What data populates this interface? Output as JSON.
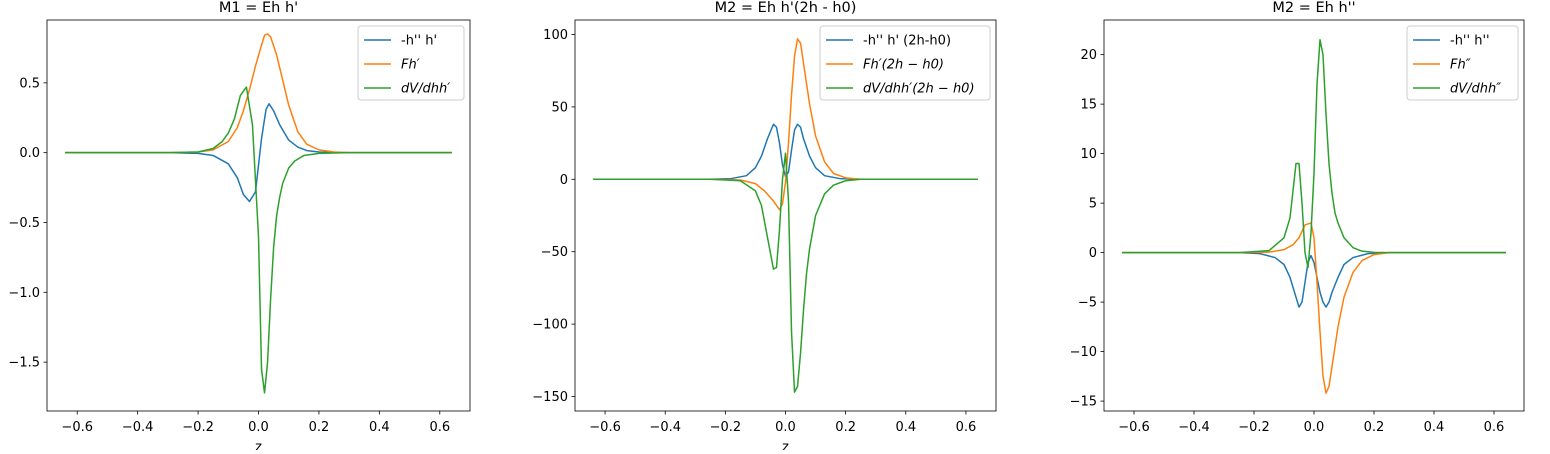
{
  "chart_data": [
    {
      "type": "line",
      "title": "M1 = Eh h'",
      "xlabel": "z",
      "ylabel": "",
      "xlim": [
        -0.7,
        0.7
      ],
      "ylim": [
        -1.85,
        0.95
      ],
      "xticks": [
        -0.6,
        -0.4,
        -0.2,
        0.0,
        0.2,
        0.4,
        0.6
      ],
      "xtick_labels": [
        "−0.6",
        "−0.4",
        "−0.2",
        "0.0",
        "0.2",
        "0.4",
        "0.6"
      ],
      "yticks": [
        -1.5,
        -1.0,
        -0.5,
        0.0,
        0.5
      ],
      "ytick_labels": [
        "−1.5",
        "−1.0",
        "−0.5",
        "0.0",
        "0.5"
      ],
      "legend_position": "top-right",
      "grid": false,
      "series": [
        {
          "name": "-h'' h'",
          "legend_style": "plain",
          "color": "#1f77b4",
          "x": [
            -0.64,
            -0.3,
            -0.2,
            -0.15,
            -0.1,
            -0.07,
            -0.05,
            -0.03,
            -0.01,
            0.01,
            0.025,
            0.035,
            0.05,
            0.07,
            0.1,
            0.13,
            0.16,
            0.2,
            0.3,
            0.64
          ],
          "y": [
            0,
            0,
            -0.005,
            -0.02,
            -0.08,
            -0.18,
            -0.3,
            -0.35,
            -0.28,
            0.1,
            0.31,
            0.35,
            0.3,
            0.2,
            0.09,
            0.04,
            0.015,
            0.005,
            0,
            0
          ]
        },
        {
          "name": "Fh′",
          "legend_style": "math",
          "color": "#ff7f0e",
          "x": [
            -0.64,
            -0.3,
            -0.2,
            -0.15,
            -0.1,
            -0.07,
            -0.05,
            -0.03,
            -0.01,
            0.01,
            0.02,
            0.03,
            0.04,
            0.06,
            0.08,
            0.1,
            0.13,
            0.16,
            0.2,
            0.25,
            0.3,
            0.64
          ],
          "y": [
            0,
            0,
            0.005,
            0.02,
            0.08,
            0.18,
            0.3,
            0.45,
            0.62,
            0.77,
            0.84,
            0.85,
            0.83,
            0.7,
            0.52,
            0.34,
            0.15,
            0.06,
            0.02,
            0.005,
            0,
            0
          ]
        },
        {
          "name": "dV/dhh′",
          "legend_style": "math",
          "color": "#2ca02c",
          "x": [
            -0.64,
            -0.3,
            -0.2,
            -0.15,
            -0.12,
            -0.1,
            -0.08,
            -0.06,
            -0.04,
            -0.02,
            0.0,
            0.01,
            0.02,
            0.03,
            0.04,
            0.05,
            0.06,
            0.07,
            0.08,
            0.1,
            0.12,
            0.15,
            0.2,
            0.3,
            0.64
          ],
          "y": [
            0,
            0,
            0.005,
            0.03,
            0.08,
            0.14,
            0.24,
            0.41,
            0.47,
            0.2,
            -0.6,
            -1.55,
            -1.72,
            -1.5,
            -1.05,
            -0.68,
            -0.45,
            -0.32,
            -0.22,
            -0.11,
            -0.06,
            -0.02,
            -0.005,
            0,
            0
          ]
        }
      ]
    },
    {
      "type": "line",
      "title": "M2 = Eh h'(2h - h0)",
      "xlabel": "z",
      "ylabel": "",
      "xlim": [
        -0.7,
        0.7
      ],
      "ylim": [
        -160,
        110
      ],
      "xticks": [
        -0.6,
        -0.4,
        -0.2,
        0.0,
        0.2,
        0.4,
        0.6
      ],
      "xtick_labels": [
        "−0.6",
        "−0.4",
        "−0.2",
        "0.0",
        "0.2",
        "0.4",
        "0.6"
      ],
      "yticks": [
        -150,
        -100,
        -50,
        0,
        50,
        100
      ],
      "ytick_labels": [
        "−150",
        "−100",
        "−50",
        "0",
        "50",
        "100"
      ],
      "legend_position": "top-right",
      "grid": false,
      "series": [
        {
          "name": "-h'' h' (2h-h0)",
          "legend_style": "plain",
          "color": "#1f77b4",
          "x": [
            -0.64,
            -0.25,
            -0.18,
            -0.13,
            -0.1,
            -0.08,
            -0.06,
            -0.04,
            -0.03,
            -0.02,
            -0.01,
            0.0,
            0.01,
            0.02,
            0.03,
            0.04,
            0.05,
            0.06,
            0.08,
            0.1,
            0.13,
            0.18,
            0.25,
            0.64
          ],
          "y": [
            0,
            0,
            0.5,
            2.5,
            8,
            16,
            28,
            38,
            36,
            25,
            10,
            2,
            5,
            20,
            34,
            38,
            36,
            28,
            16,
            8,
            2.5,
            0.5,
            0,
            0
          ]
        },
        {
          "name": "Fh′(2h − h0)",
          "legend_style": "math",
          "color": "#ff7f0e",
          "x": [
            -0.64,
            -0.25,
            -0.15,
            -0.1,
            -0.07,
            -0.04,
            -0.02,
            -0.01,
            0.0,
            0.01,
            0.02,
            0.03,
            0.04,
            0.05,
            0.06,
            0.08,
            0.1,
            0.13,
            0.16,
            0.2,
            0.25,
            0.64
          ],
          "y": [
            0,
            0,
            -0.5,
            -3,
            -8,
            -15,
            -21,
            -17,
            -2,
            25,
            58,
            85,
            97,
            94,
            80,
            52,
            30,
            12,
            4,
            1,
            0,
            0
          ]
        },
        {
          "name": "dV/dhh′(2h − h0)",
          "legend_style": "math",
          "color": "#2ca02c",
          "x": [
            -0.64,
            -0.25,
            -0.15,
            -0.1,
            -0.08,
            -0.06,
            -0.04,
            -0.03,
            -0.02,
            -0.01,
            0.0,
            0.01,
            0.02,
            0.03,
            0.04,
            0.05,
            0.06,
            0.07,
            0.08,
            0.1,
            0.13,
            0.16,
            0.2,
            0.25,
            0.64
          ],
          "y": [
            0,
            0,
            -1,
            -8,
            -18,
            -40,
            -62,
            -61,
            -35,
            0,
            18,
            -15,
            -105,
            -147,
            -143,
            -120,
            -90,
            -65,
            -48,
            -25,
            -10,
            -4,
            -1,
            0,
            0
          ]
        }
      ]
    },
    {
      "type": "line",
      "title": "M2 = Eh h''",
      "xlabel": "",
      "ylabel": "",
      "xlim": [
        -0.7,
        0.7
      ],
      "ylim": [
        -16,
        23.5
      ],
      "xticks": [
        -0.6,
        -0.4,
        -0.2,
        0.0,
        0.2,
        0.4,
        0.6
      ],
      "xtick_labels": [
        "−0.6",
        "−0.4",
        "−0.2",
        "0.0",
        "0.2",
        "0.4",
        "0.6"
      ],
      "yticks": [
        -15,
        -10,
        -5,
        0,
        5,
        10,
        15,
        20
      ],
      "ytick_labels": [
        "−15",
        "−10",
        "−5",
        "0",
        "5",
        "10",
        "15",
        "20"
      ],
      "legend_position": "top-right",
      "grid": false,
      "series": [
        {
          "name": "-h'' h''",
          "legend_style": "plain",
          "color": "#1f77b4",
          "x": [
            -0.64,
            -0.25,
            -0.18,
            -0.13,
            -0.1,
            -0.08,
            -0.06,
            -0.05,
            -0.04,
            -0.03,
            -0.02,
            -0.01,
            0.0,
            0.01,
            0.02,
            0.03,
            0.04,
            0.05,
            0.06,
            0.08,
            0.1,
            0.13,
            0.18,
            0.25,
            0.64
          ],
          "y": [
            0,
            0,
            -0.1,
            -0.5,
            -1.2,
            -2.5,
            -4.5,
            -5.5,
            -5,
            -3,
            -1,
            -0.3,
            -1,
            -2.5,
            -4,
            -5,
            -5.5,
            -5,
            -4,
            -2.5,
            -1.2,
            -0.5,
            -0.1,
            0,
            0
          ]
        },
        {
          "name": "Fh″",
          "legend_style": "math",
          "color": "#ff7f0e",
          "x": [
            -0.64,
            -0.25,
            -0.15,
            -0.1,
            -0.07,
            -0.05,
            -0.03,
            -0.01,
            0.0,
            0.01,
            0.02,
            0.03,
            0.04,
            0.05,
            0.06,
            0.08,
            0.1,
            0.13,
            0.16,
            0.2,
            0.25,
            0.64
          ],
          "y": [
            0,
            0,
            0.05,
            0.3,
            0.8,
            1.5,
            2.8,
            3,
            1.5,
            -3,
            -8,
            -12.5,
            -14.2,
            -13.5,
            -11.5,
            -7.5,
            -4.5,
            -2,
            -0.8,
            -0.2,
            0,
            0
          ]
        },
        {
          "name": "dV/dhh″",
          "legend_style": "math",
          "color": "#2ca02c",
          "x": [
            -0.64,
            -0.25,
            -0.15,
            -0.1,
            -0.08,
            -0.06,
            -0.05,
            -0.04,
            -0.03,
            -0.02,
            -0.01,
            0.0,
            0.01,
            0.02,
            0.03,
            0.04,
            0.05,
            0.06,
            0.07,
            0.08,
            0.1,
            0.13,
            0.16,
            0.2,
            0.25,
            0.64
          ],
          "y": [
            0,
            0,
            0.2,
            1.5,
            3.5,
            9,
            9,
            5,
            0,
            -1.5,
            2,
            8,
            17,
            21.5,
            20,
            14,
            9,
            6,
            4,
            3,
            1.5,
            0.5,
            0.15,
            0.03,
            0,
            0
          ]
        }
      ]
    }
  ]
}
